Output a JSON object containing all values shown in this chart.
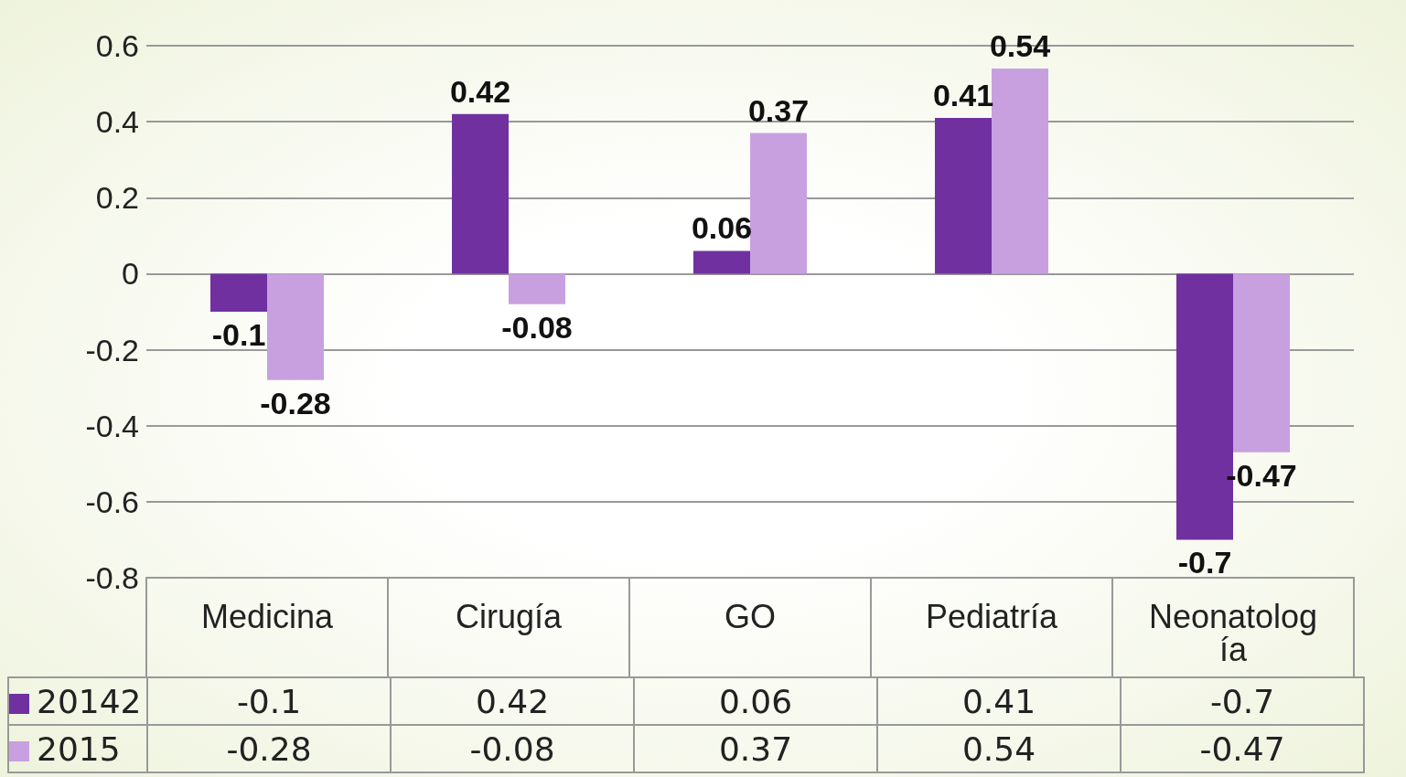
{
  "chart_data": {
    "type": "bar",
    "categories": [
      "Medicina",
      "Cirugía",
      "GO",
      "Pediatría",
      "Neonatología"
    ],
    "series": [
      {
        "name": "20142",
        "color": "#7030a0",
        "values": [
          -0.1,
          0.42,
          0.06,
          0.41,
          -0.7
        ],
        "value_labels": [
          "-0.1",
          "0.42",
          "0.06",
          "0.41",
          "-0.7"
        ]
      },
      {
        "name": "2015",
        "color": "#c8a0e0",
        "values": [
          -0.28,
          -0.08,
          0.37,
          0.54,
          -0.47
        ],
        "value_labels": [
          "-0.28",
          "-0.08",
          "0.37",
          "0.54",
          "-0.47"
        ]
      }
    ],
    "ylim": [
      -0.8,
      0.6
    ],
    "yticks": [
      -0.8,
      -0.6,
      -0.4,
      -0.2,
      0,
      0.2,
      0.4,
      0.6
    ],
    "grid": "y",
    "data_labels": true,
    "legend": "bottom left"
  }
}
